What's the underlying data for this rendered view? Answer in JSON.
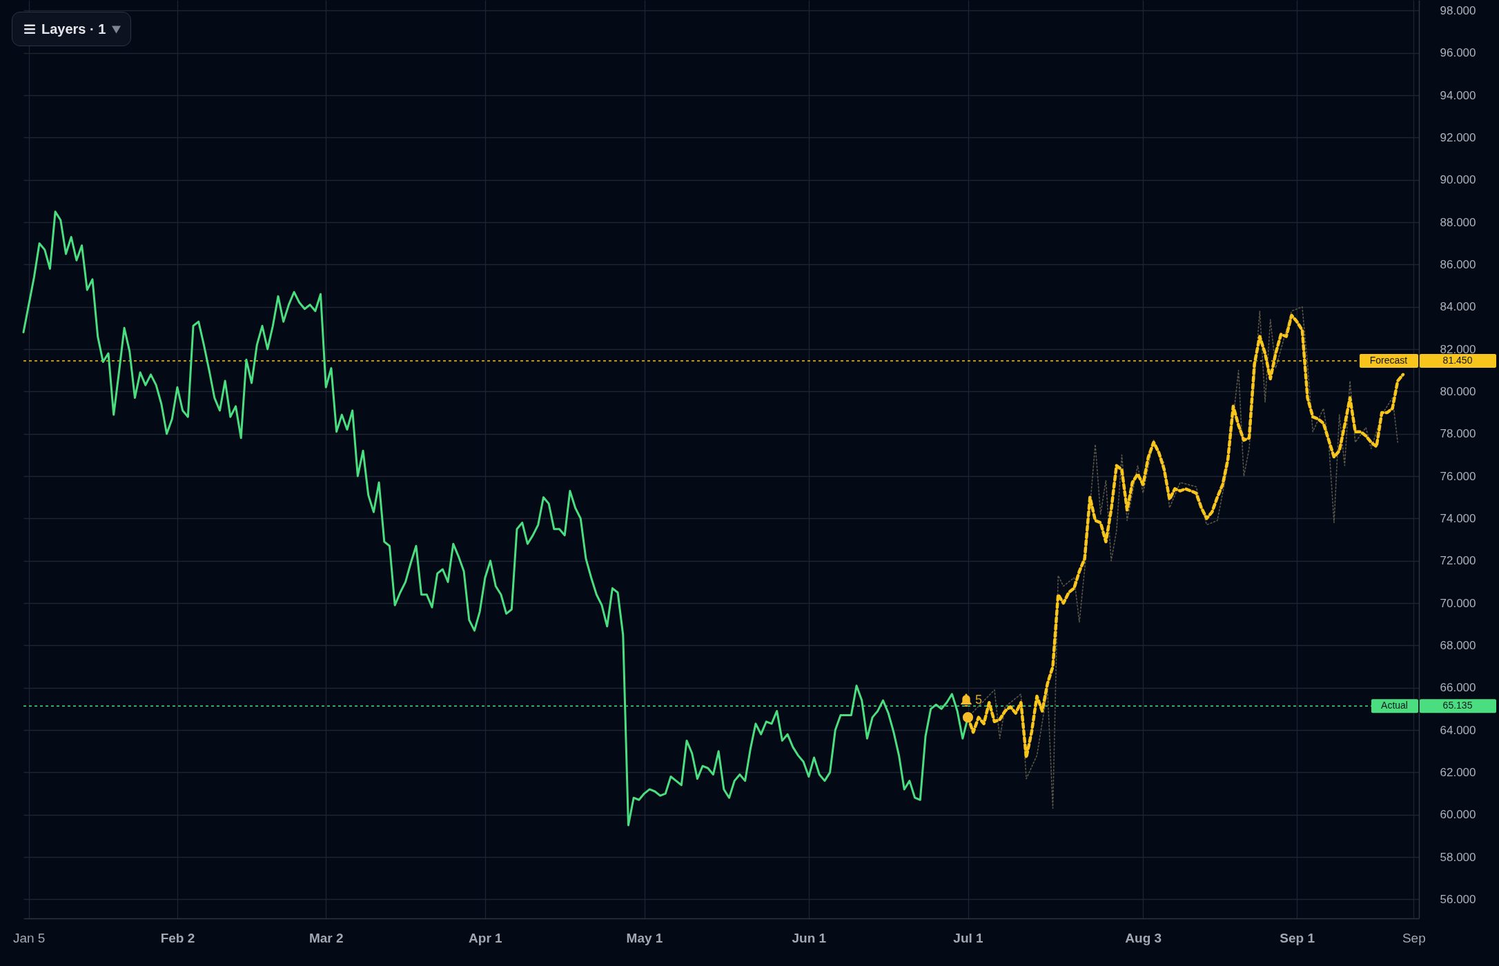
{
  "chart_data": {
    "type": "line",
    "xlim": [
      "--01-04",
      "--09-24"
    ],
    "ylim": [
      55.1,
      98.5
    ],
    "xticks": [
      {
        "value": "--01-05",
        "label": "Jan 5"
      },
      {
        "value": "--02-02",
        "label": "Feb 2"
      },
      {
        "value": "--03-02",
        "label": "Mar 2"
      },
      {
        "value": "--04-01",
        "label": "Apr 1"
      },
      {
        "value": "--05-01",
        "label": "May 1"
      },
      {
        "value": "--06-01",
        "label": "Jun 1"
      },
      {
        "value": "--07-01",
        "label": "Jul 1"
      },
      {
        "value": "--08-03",
        "label": "Aug 3"
      },
      {
        "value": "--09-01",
        "label": "Sep 1"
      },
      {
        "value": "--09-23",
        "label": "Sep"
      }
    ],
    "yticks": [
      {
        "value": 56,
        "label": "56.000"
      },
      {
        "value": 58,
        "label": "58.000"
      },
      {
        "value": 60,
        "label": "60.000"
      },
      {
        "value": 62,
        "label": "62.000"
      },
      {
        "value": 64,
        "label": "64.000"
      },
      {
        "value": 66,
        "label": "66.000"
      },
      {
        "value": 68,
        "label": "68.000"
      },
      {
        "value": 70,
        "label": "70.000"
      },
      {
        "value": 72,
        "label": "72.000"
      },
      {
        "value": 74,
        "label": "74.000"
      },
      {
        "value": 76,
        "label": "76.000"
      },
      {
        "value": 78,
        "label": "78.000"
      },
      {
        "value": 80,
        "label": "80.000"
      },
      {
        "value": 82,
        "label": "82.000"
      },
      {
        "value": 84,
        "label": "84.000"
      },
      {
        "value": 86,
        "label": "86.000"
      },
      {
        "value": 88,
        "label": "88.000"
      },
      {
        "value": 90,
        "label": "90.000"
      },
      {
        "value": 92,
        "label": "92.000"
      },
      {
        "value": 94,
        "label": "94.000"
      },
      {
        "value": 96,
        "label": "96.000"
      },
      {
        "value": 98,
        "label": "98.000"
      }
    ],
    "grid": true,
    "series": [
      {
        "type": "line",
        "color": "#5a5748",
        "line_style": "dotted",
        "x": [
          "--07-01",
          "--07-06",
          "--07-07",
          "--07-08",
          "--07-11",
          "--07-12",
          "--07-14",
          "--07-16",
          "--07-17",
          "--07-18",
          "--07-19",
          "--07-21",
          "--07-22",
          "--07-23",
          "--07-25",
          "--07-26",
          "--07-27",
          "--07-28",
          "--07-29",
          "--07-30",
          "--07-31",
          "--08-02",
          "--08-03",
          "--08-05",
          "--08-07",
          "--08-08",
          "--08-10",
          "--08-13",
          "--08-15",
          "--08-17",
          "--08-19",
          "--08-21",
          "--08-22",
          "--08-23",
          "--08-25",
          "--08-26",
          "--08-27",
          "--08-28",
          "--08-31",
          "--09-02",
          "--09-03",
          "--09-04",
          "--09-06",
          "--09-07",
          "--09-08",
          "--09-09",
          "--09-10",
          "--09-11",
          "--09-12",
          "--09-14",
          "--09-15",
          "--09-17",
          "--09-19",
          "--09-20"
        ],
        "values": [
          64.6,
          65.9,
          63.6,
          65.1,
          65.7,
          61.7,
          62.8,
          65.9,
          60.3,
          71.3,
          70.8,
          71.2,
          69.1,
          71.6,
          77.5,
          74.2,
          75.8,
          72.0,
          73.4,
          77.0,
          73.9,
          76.5,
          75.2,
          77.7,
          76.6,
          74.5,
          75.7,
          75.5,
          73.7,
          73.9,
          76.5,
          81.0,
          76.0,
          77.3,
          83.8,
          79.5,
          83.4,
          81.1,
          83.8,
          84.0,
          81.3,
          78.1,
          79.2,
          77.6,
          73.8,
          78.9,
          76.5,
          80.5,
          77.6,
          78.3,
          77.3,
          78.9,
          79.7,
          77.6
        ]
      },
      {
        "type": "line",
        "color": "#4ade80",
        "line_style": "solid",
        "x": [
          "--01-04",
          "--01-05",
          "--01-06",
          "--01-07",
          "--01-08",
          "--01-09",
          "--01-10",
          "--01-11",
          "--01-12",
          "--01-13",
          "--01-14",
          "--01-15",
          "--01-16",
          "--01-17",
          "--01-18",
          "--01-19",
          "--01-20",
          "--01-21",
          "--01-22",
          "--01-23",
          "--01-24",
          "--01-25",
          "--01-26",
          "--01-27",
          "--01-28",
          "--01-29",
          "--01-30",
          "--01-31",
          "--02-01",
          "--02-02",
          "--02-03",
          "--02-04",
          "--02-05",
          "--02-06",
          "--02-07",
          "--02-08",
          "--02-09",
          "--02-10",
          "--02-11",
          "--02-12",
          "--02-13",
          "--02-14",
          "--02-15",
          "--02-16",
          "--02-17",
          "--02-18",
          "--02-19",
          "--02-20",
          "--02-21",
          "--02-22",
          "--02-23",
          "--02-24",
          "--02-25",
          "--02-26",
          "--02-27",
          "--02-28",
          "--03-01",
          "--03-02",
          "--03-03",
          "--03-04",
          "--03-05",
          "--03-06",
          "--03-07",
          "--03-08",
          "--03-09",
          "--03-10",
          "--03-11",
          "--03-12",
          "--03-13",
          "--03-14",
          "--03-15",
          "--03-16",
          "--03-17",
          "--03-18",
          "--03-19",
          "--03-20",
          "--03-21",
          "--03-22",
          "--03-23",
          "--03-24",
          "--03-25",
          "--03-26",
          "--03-27",
          "--03-28",
          "--03-29",
          "--03-30",
          "--03-31",
          "--04-01",
          "--04-02",
          "--04-03",
          "--04-04",
          "--04-05",
          "--04-06",
          "--04-07",
          "--04-08",
          "--04-09",
          "--04-10",
          "--04-11",
          "--04-12",
          "--04-13",
          "--04-14",
          "--04-15",
          "--04-16",
          "--04-17",
          "--04-18",
          "--04-19",
          "--04-20",
          "--04-21",
          "--04-22",
          "--04-23",
          "--04-24",
          "--04-25",
          "--04-26",
          "--04-27",
          "--04-28",
          "--04-29",
          "--04-30",
          "--05-01",
          "--05-02",
          "--05-03",
          "--05-04",
          "--05-05",
          "--05-06",
          "--05-07",
          "--05-08",
          "--05-09",
          "--05-10",
          "--05-11",
          "--05-12",
          "--05-13",
          "--05-14",
          "--05-15",
          "--05-16",
          "--05-17",
          "--05-18",
          "--05-19",
          "--05-20",
          "--05-21",
          "--05-22",
          "--05-23",
          "--05-24",
          "--05-25",
          "--05-26",
          "--05-27",
          "--05-28",
          "--05-29",
          "--05-30",
          "--05-31",
          "--06-01",
          "--06-02",
          "--06-03",
          "--06-04",
          "--06-05",
          "--06-06",
          "--06-07",
          "--06-08",
          "--06-09",
          "--06-10",
          "--06-11",
          "--06-12",
          "--06-13",
          "--06-14",
          "--06-15",
          "--06-16",
          "--06-17",
          "--06-18",
          "--06-19",
          "--06-20",
          "--06-21",
          "--06-22",
          "--06-23",
          "--06-24",
          "--06-25",
          "--06-26",
          "--06-27",
          "--06-28",
          "--06-29",
          "--06-30",
          "--07-01"
        ],
        "values": [
          82.8,
          84.1,
          85.4,
          87.0,
          86.7,
          85.8,
          88.5,
          88.1,
          86.5,
          87.3,
          86.2,
          86.9,
          84.8,
          85.3,
          82.6,
          81.4,
          81.8,
          78.9,
          80.9,
          83.0,
          81.9,
          79.7,
          80.9,
          80.3,
          80.8,
          80.3,
          79.4,
          78.0,
          78.7,
          80.2,
          79.1,
          78.8,
          83.1,
          83.3,
          82.2,
          81.0,
          79.7,
          79.1,
          80.5,
          78.8,
          79.3,
          77.8,
          81.5,
          80.4,
          82.2,
          83.1,
          82.0,
          83.1,
          84.5,
          83.3,
          84.1,
          84.7,
          84.2,
          83.9,
          84.1,
          83.8,
          84.6,
          80.2,
          81.1,
          78.1,
          78.9,
          78.2,
          79.1,
          76.0,
          77.2,
          75.1,
          74.3,
          75.7,
          72.9,
          72.7,
          69.9,
          70.5,
          71.0,
          71.9,
          72.7,
          70.4,
          70.4,
          69.8,
          71.4,
          71.6,
          71.0,
          72.8,
          72.2,
          71.5,
          69.2,
          68.7,
          69.6,
          71.2,
          72.0,
          70.8,
          70.4,
          69.5,
          69.7,
          73.5,
          73.8,
          72.8,
          73.2,
          73.7,
          75.0,
          74.7,
          73.5,
          73.5,
          73.2,
          75.3,
          74.5,
          74.0,
          72.1,
          71.2,
          70.4,
          69.9,
          68.9,
          70.7,
          70.5,
          68.5,
          59.5,
          60.8,
          60.7,
          61.0,
          61.2,
          61.1,
          60.9,
          61.0,
          61.8,
          61.6,
          61.4,
          63.5,
          62.9,
          61.7,
          62.3,
          62.2,
          61.9,
          63.0,
          61.2,
          60.8,
          61.6,
          61.9,
          61.6,
          63.1,
          64.3,
          63.8,
          64.4,
          64.3,
          64.9,
          63.5,
          63.8,
          63.2,
          62.8,
          62.5,
          61.8,
          62.7,
          61.9,
          61.6,
          62.0,
          64.0,
          64.7,
          64.7,
          64.7,
          66.1,
          65.4,
          63.6,
          64.6,
          64.9,
          65.4,
          64.8,
          63.9,
          62.8,
          61.2,
          61.6,
          60.8,
          60.7,
          63.7,
          65.0,
          65.2,
          65.0,
          65.3,
          65.7,
          64.9,
          63.6,
          64.6
        ]
      },
      {
        "type": "line",
        "color": "#f8c51c",
        "line_style": "dashed",
        "x": [
          "--07-01",
          "--07-02",
          "--07-03",
          "--07-04",
          "--07-05",
          "--07-06",
          "--07-07",
          "--07-08",
          "--07-09",
          "--07-10",
          "--07-11",
          "--07-12",
          "--07-13",
          "--07-14",
          "--07-15",
          "--07-16",
          "--07-17",
          "--07-18",
          "--07-19",
          "--07-20",
          "--07-21",
          "--07-22",
          "--07-23",
          "--07-24",
          "--07-25",
          "--07-26",
          "--07-27",
          "--07-28",
          "--07-29",
          "--07-30",
          "--07-31",
          "--08-01",
          "--08-02",
          "--08-03",
          "--08-04",
          "--08-05",
          "--08-06",
          "--08-07",
          "--08-08",
          "--08-09",
          "--08-10",
          "--08-11",
          "--08-12",
          "--08-13",
          "--08-14",
          "--08-15",
          "--08-16",
          "--08-17",
          "--08-18",
          "--08-19",
          "--08-20",
          "--08-21",
          "--08-22",
          "--08-23",
          "--08-24",
          "--08-25",
          "--08-26",
          "--08-27",
          "--08-28",
          "--08-29",
          "--08-30",
          "--08-31",
          "--09-01",
          "--09-02",
          "--09-03",
          "--09-04",
          "--09-05",
          "--09-06",
          "--09-07",
          "--09-08",
          "--09-09",
          "--09-10",
          "--09-11",
          "--09-12",
          "--09-13",
          "--09-14",
          "--09-15",
          "--09-16",
          "--09-17",
          "--09-18",
          "--09-19",
          "--09-20",
          "--09-21"
        ],
        "values": [
          64.6,
          63.9,
          64.6,
          64.3,
          65.3,
          64.4,
          64.5,
          64.9,
          65.1,
          64.8,
          65.3,
          62.7,
          63.9,
          65.6,
          64.9,
          66.2,
          67.0,
          70.4,
          70.0,
          70.5,
          70.7,
          71.5,
          72.1,
          75.0,
          73.9,
          73.8,
          72.9,
          74.4,
          76.5,
          76.3,
          74.4,
          75.7,
          76.1,
          75.6,
          76.9,
          77.6,
          77.1,
          76.3,
          74.9,
          75.4,
          75.3,
          75.4,
          75.3,
          75.2,
          74.5,
          74.0,
          74.3,
          75.0,
          75.6,
          76.8,
          79.3,
          78.4,
          77.7,
          77.8,
          81.3,
          82.6,
          81.8,
          80.6,
          81.8,
          82.7,
          82.6,
          83.6,
          83.3,
          82.9,
          79.7,
          78.8,
          78.7,
          78.5,
          77.7,
          76.9,
          77.2,
          78.4,
          79.7,
          78.1,
          78.1,
          77.9,
          77.6,
          77.4,
          79.0,
          79.0,
          79.2,
          80.5,
          80.8
        ]
      },
      {
        "type": "scatter",
        "color": "#f6bd2b",
        "marker": "circle",
        "x": [
          "--07-01"
        ],
        "values": [
          64.6
        ]
      }
    ],
    "ref_lines": [
      {
        "axis": "y",
        "value": 81.45,
        "label": "Forecast",
        "color": "#f8c51c",
        "line_style": "dotted"
      },
      {
        "axis": "y",
        "value": 65.135,
        "label": "Actual",
        "color": "#4ade80",
        "line_style": "dotted"
      }
    ],
    "annotations": [
      "Layers · 1",
      {
        "text": "5",
        "x": "--07-03",
        "y": 65.4
      },
      "81.450",
      "65.135"
    ]
  }
}
